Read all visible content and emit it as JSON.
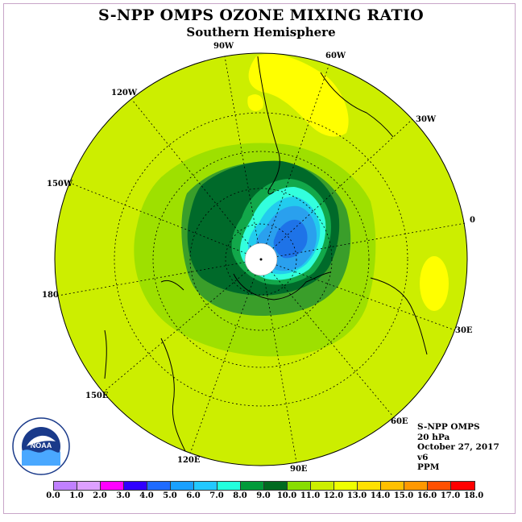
{
  "title": "S-NPP OMPS OZONE MIXING RATIO",
  "subtitle": "Southern Hemisphere",
  "lon_labels": [
    "90W",
    "60W",
    "30W",
    "0",
    "30E",
    "60E",
    "90E",
    "120E",
    "150E",
    "180",
    "150W",
    "120W"
  ],
  "info": {
    "instrument": "S-NPP OMPS",
    "level": "20 hPa",
    "date": "October 27, 2017",
    "version": "v6",
    "units": "PPM"
  },
  "logo": {
    "text": "NOAA"
  },
  "colorbar": {
    "ticks": [
      "0.0",
      "1.0",
      "2.0",
      "3.0",
      "4.0",
      "5.0",
      "6.0",
      "7.0",
      "8.0",
      "9.0",
      "10.0",
      "11.0",
      "12.0",
      "13.0",
      "14.0",
      "15.0",
      "16.0",
      "17.0",
      "18.0"
    ],
    "colors": [
      "#c080ff",
      "#dda0ff",
      "#ff00ff",
      "#3000ff",
      "#1e6bff",
      "#1aa0ff",
      "#22c8ff",
      "#22ffdd",
      "#009a3a",
      "#006a20",
      "#88dd00",
      "#ccee00",
      "#eeff00",
      "#ffe000",
      "#ffc000",
      "#ff9800",
      "#ff5000",
      "#ff0000",
      "#8a5030"
    ]
  }
}
